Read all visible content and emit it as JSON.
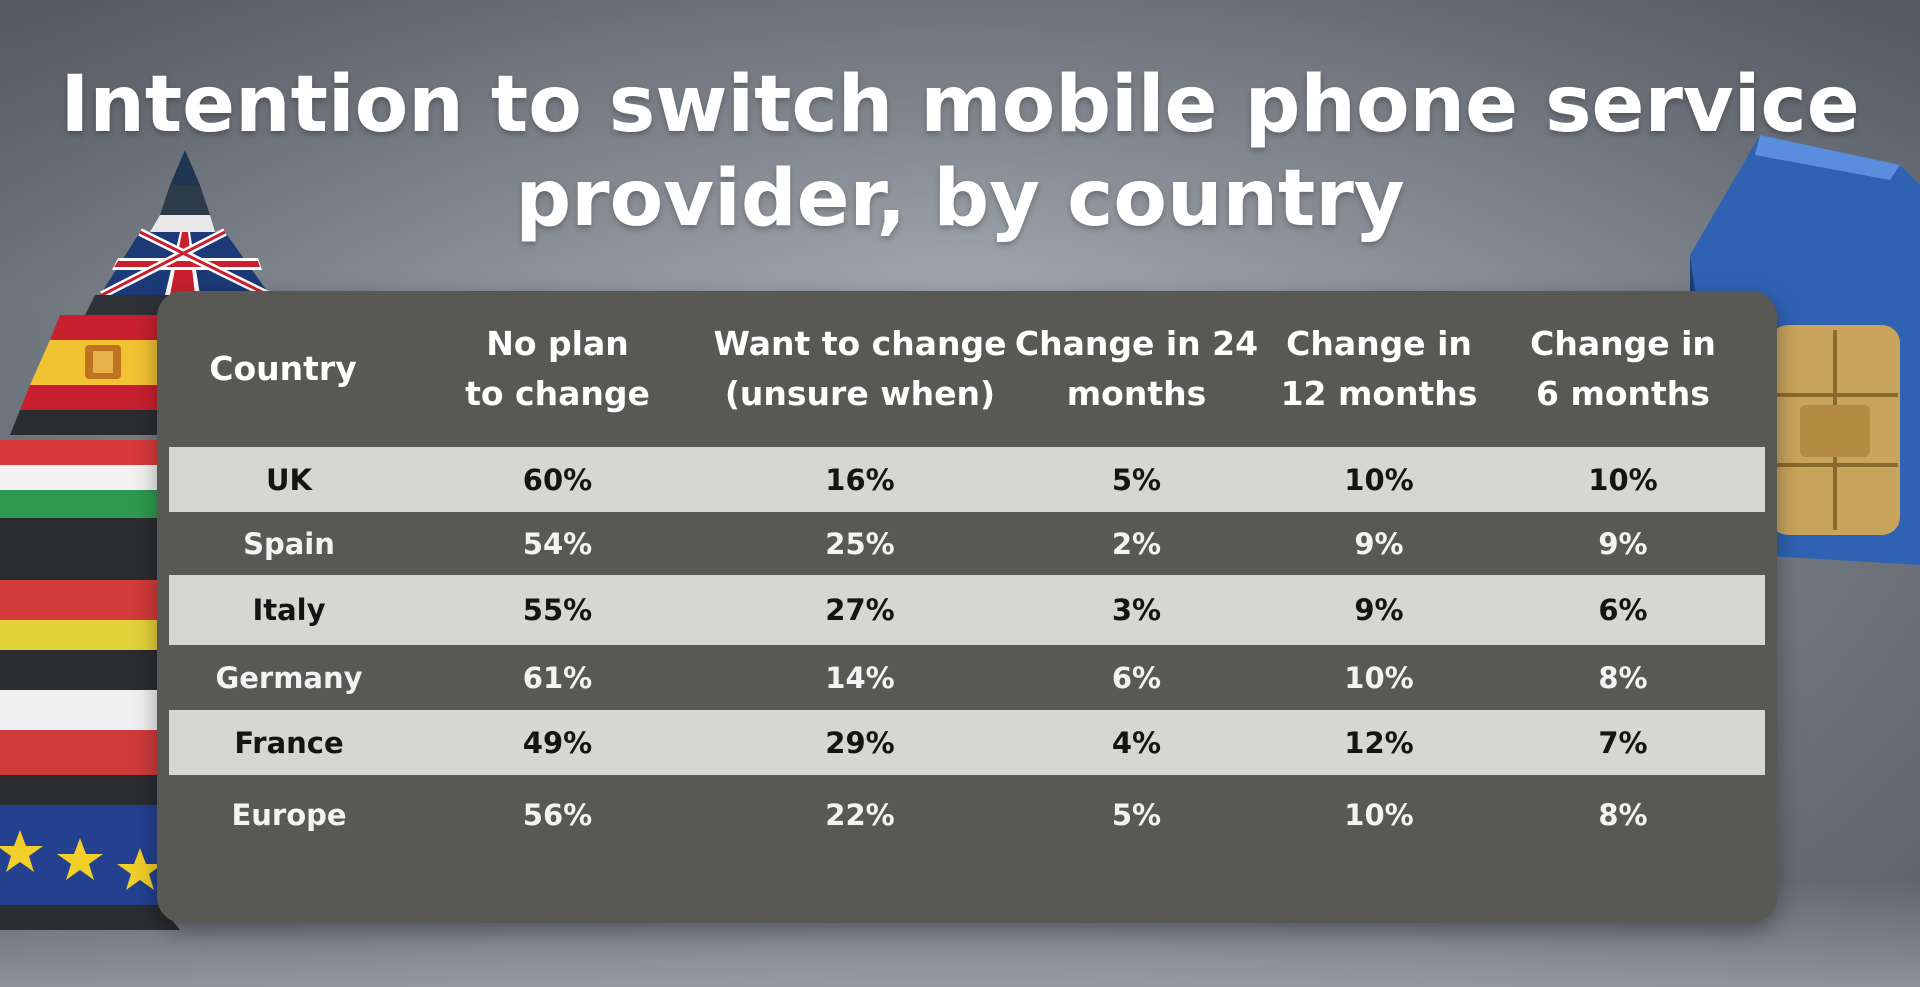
{
  "title": "Intention to switch mobile phone service provider, by country",
  "chart_data": {
    "type": "table",
    "title": "Intention to switch mobile phone service provider, by country",
    "columns": [
      "Country",
      "No plan\nto change",
      "Want to change\n(unsure when)",
      "Change in 24\nmonths",
      "Change in\n12 months",
      "Change in\n6 months"
    ],
    "rows": [
      [
        "UK",
        "60%",
        "16%",
        "5%",
        "10%",
        "10%"
      ],
      [
        "Spain",
        "54%",
        "25%",
        "2%",
        "9%",
        "9%"
      ],
      [
        "Italy",
        "55%",
        "27%",
        "3%",
        "9%",
        "6%"
      ],
      [
        "Germany",
        "61%",
        "14%",
        "6%",
        "10%",
        "8%"
      ],
      [
        "France",
        "49%",
        "29%",
        "4%",
        "12%",
        "7%"
      ],
      [
        "Europe",
        "56%",
        "22%",
        "5%",
        "10%",
        "8%"
      ]
    ]
  },
  "colors": {
    "panel": "#585855",
    "row_light": "#d7d7d2",
    "text_light": "#ffffff",
    "text_dark": "#141414"
  }
}
